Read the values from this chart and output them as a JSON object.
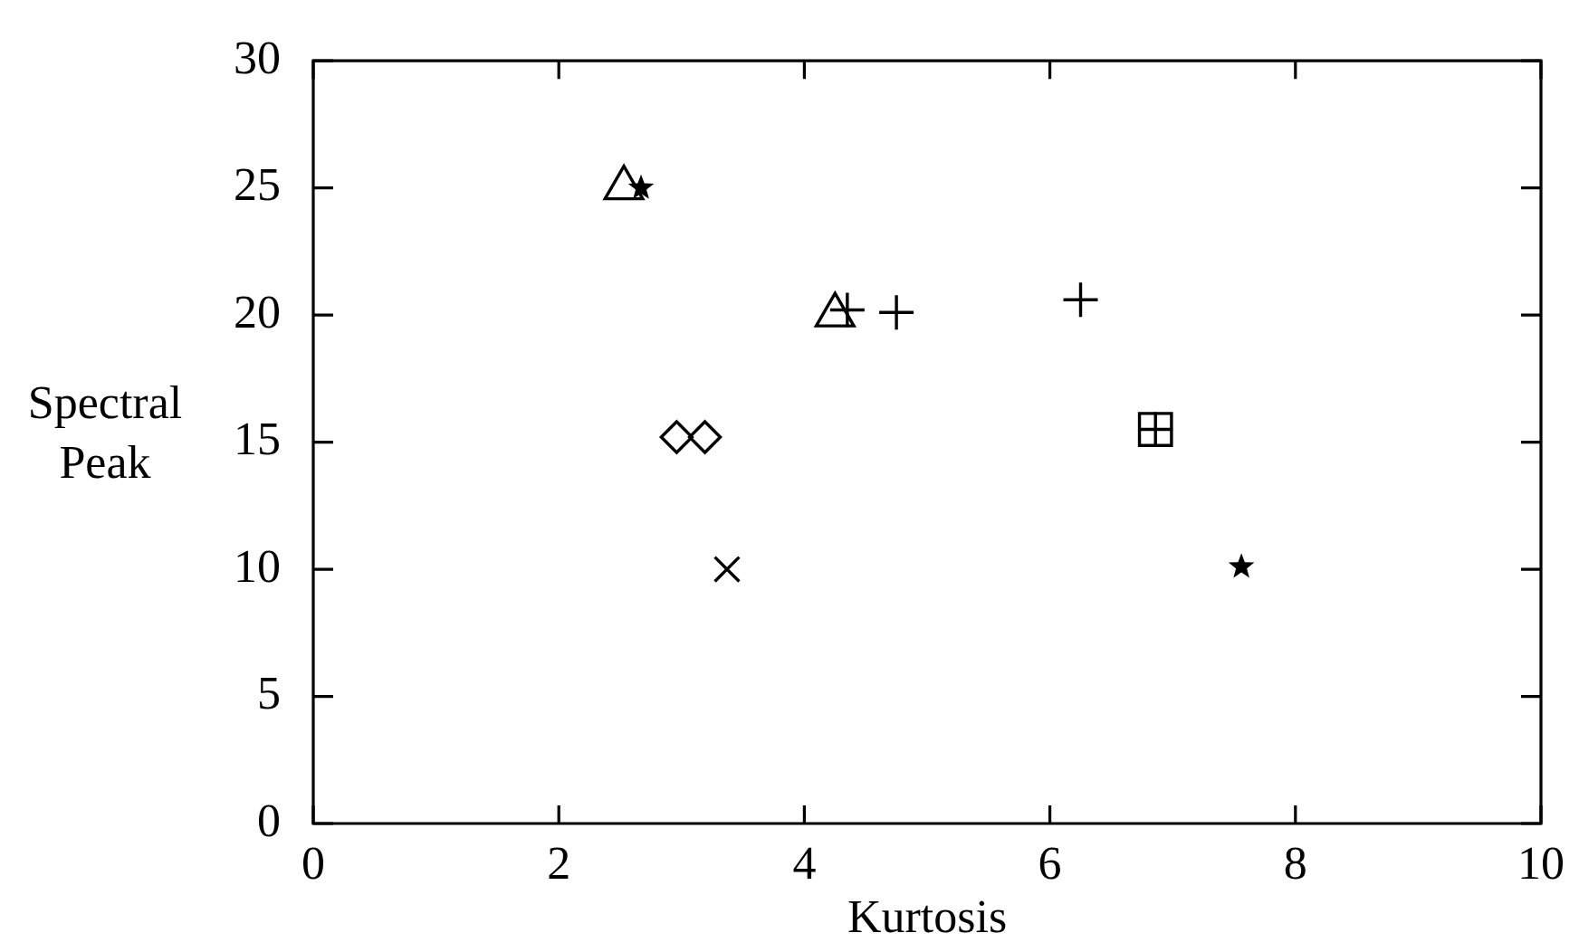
{
  "chart_data": {
    "type": "scatter",
    "xlabel": "Kurtosis",
    "ylabel": "Spectral Peak",
    "xlim": [
      0,
      10
    ],
    "ylim": [
      0,
      30
    ],
    "xticks": [
      0,
      2,
      4,
      6,
      8,
      10
    ],
    "yticks": [
      0,
      5,
      10,
      15,
      20,
      25,
      30
    ],
    "grid": false,
    "legend": false,
    "series": [
      {
        "marker": "triangle",
        "color": "#000000",
        "x": [
          2.53,
          4.25
        ],
        "values": [
          25.0,
          20.0
        ]
      },
      {
        "marker": "star",
        "color": "#000000",
        "x": [
          2.67,
          7.56
        ],
        "values": [
          25.0,
          10.1
        ]
      },
      {
        "marker": "square",
        "color": "#000000",
        "x": [
          6.86
        ],
        "values": [
          15.5
        ]
      },
      {
        "marker": "cross",
        "color": "#000000",
        "x": [
          4.35,
          4.75,
          6.25,
          6.86
        ],
        "values": [
          20.2,
          20.1,
          20.6,
          15.5
        ]
      },
      {
        "marker": "diamond",
        "color": "#000000",
        "x": [
          2.96,
          3.19
        ],
        "values": [
          15.2,
          15.2
        ]
      },
      {
        "marker": "x",
        "color": "#000000",
        "x": [
          3.37
        ],
        "values": [
          10.0
        ]
      }
    ]
  }
}
